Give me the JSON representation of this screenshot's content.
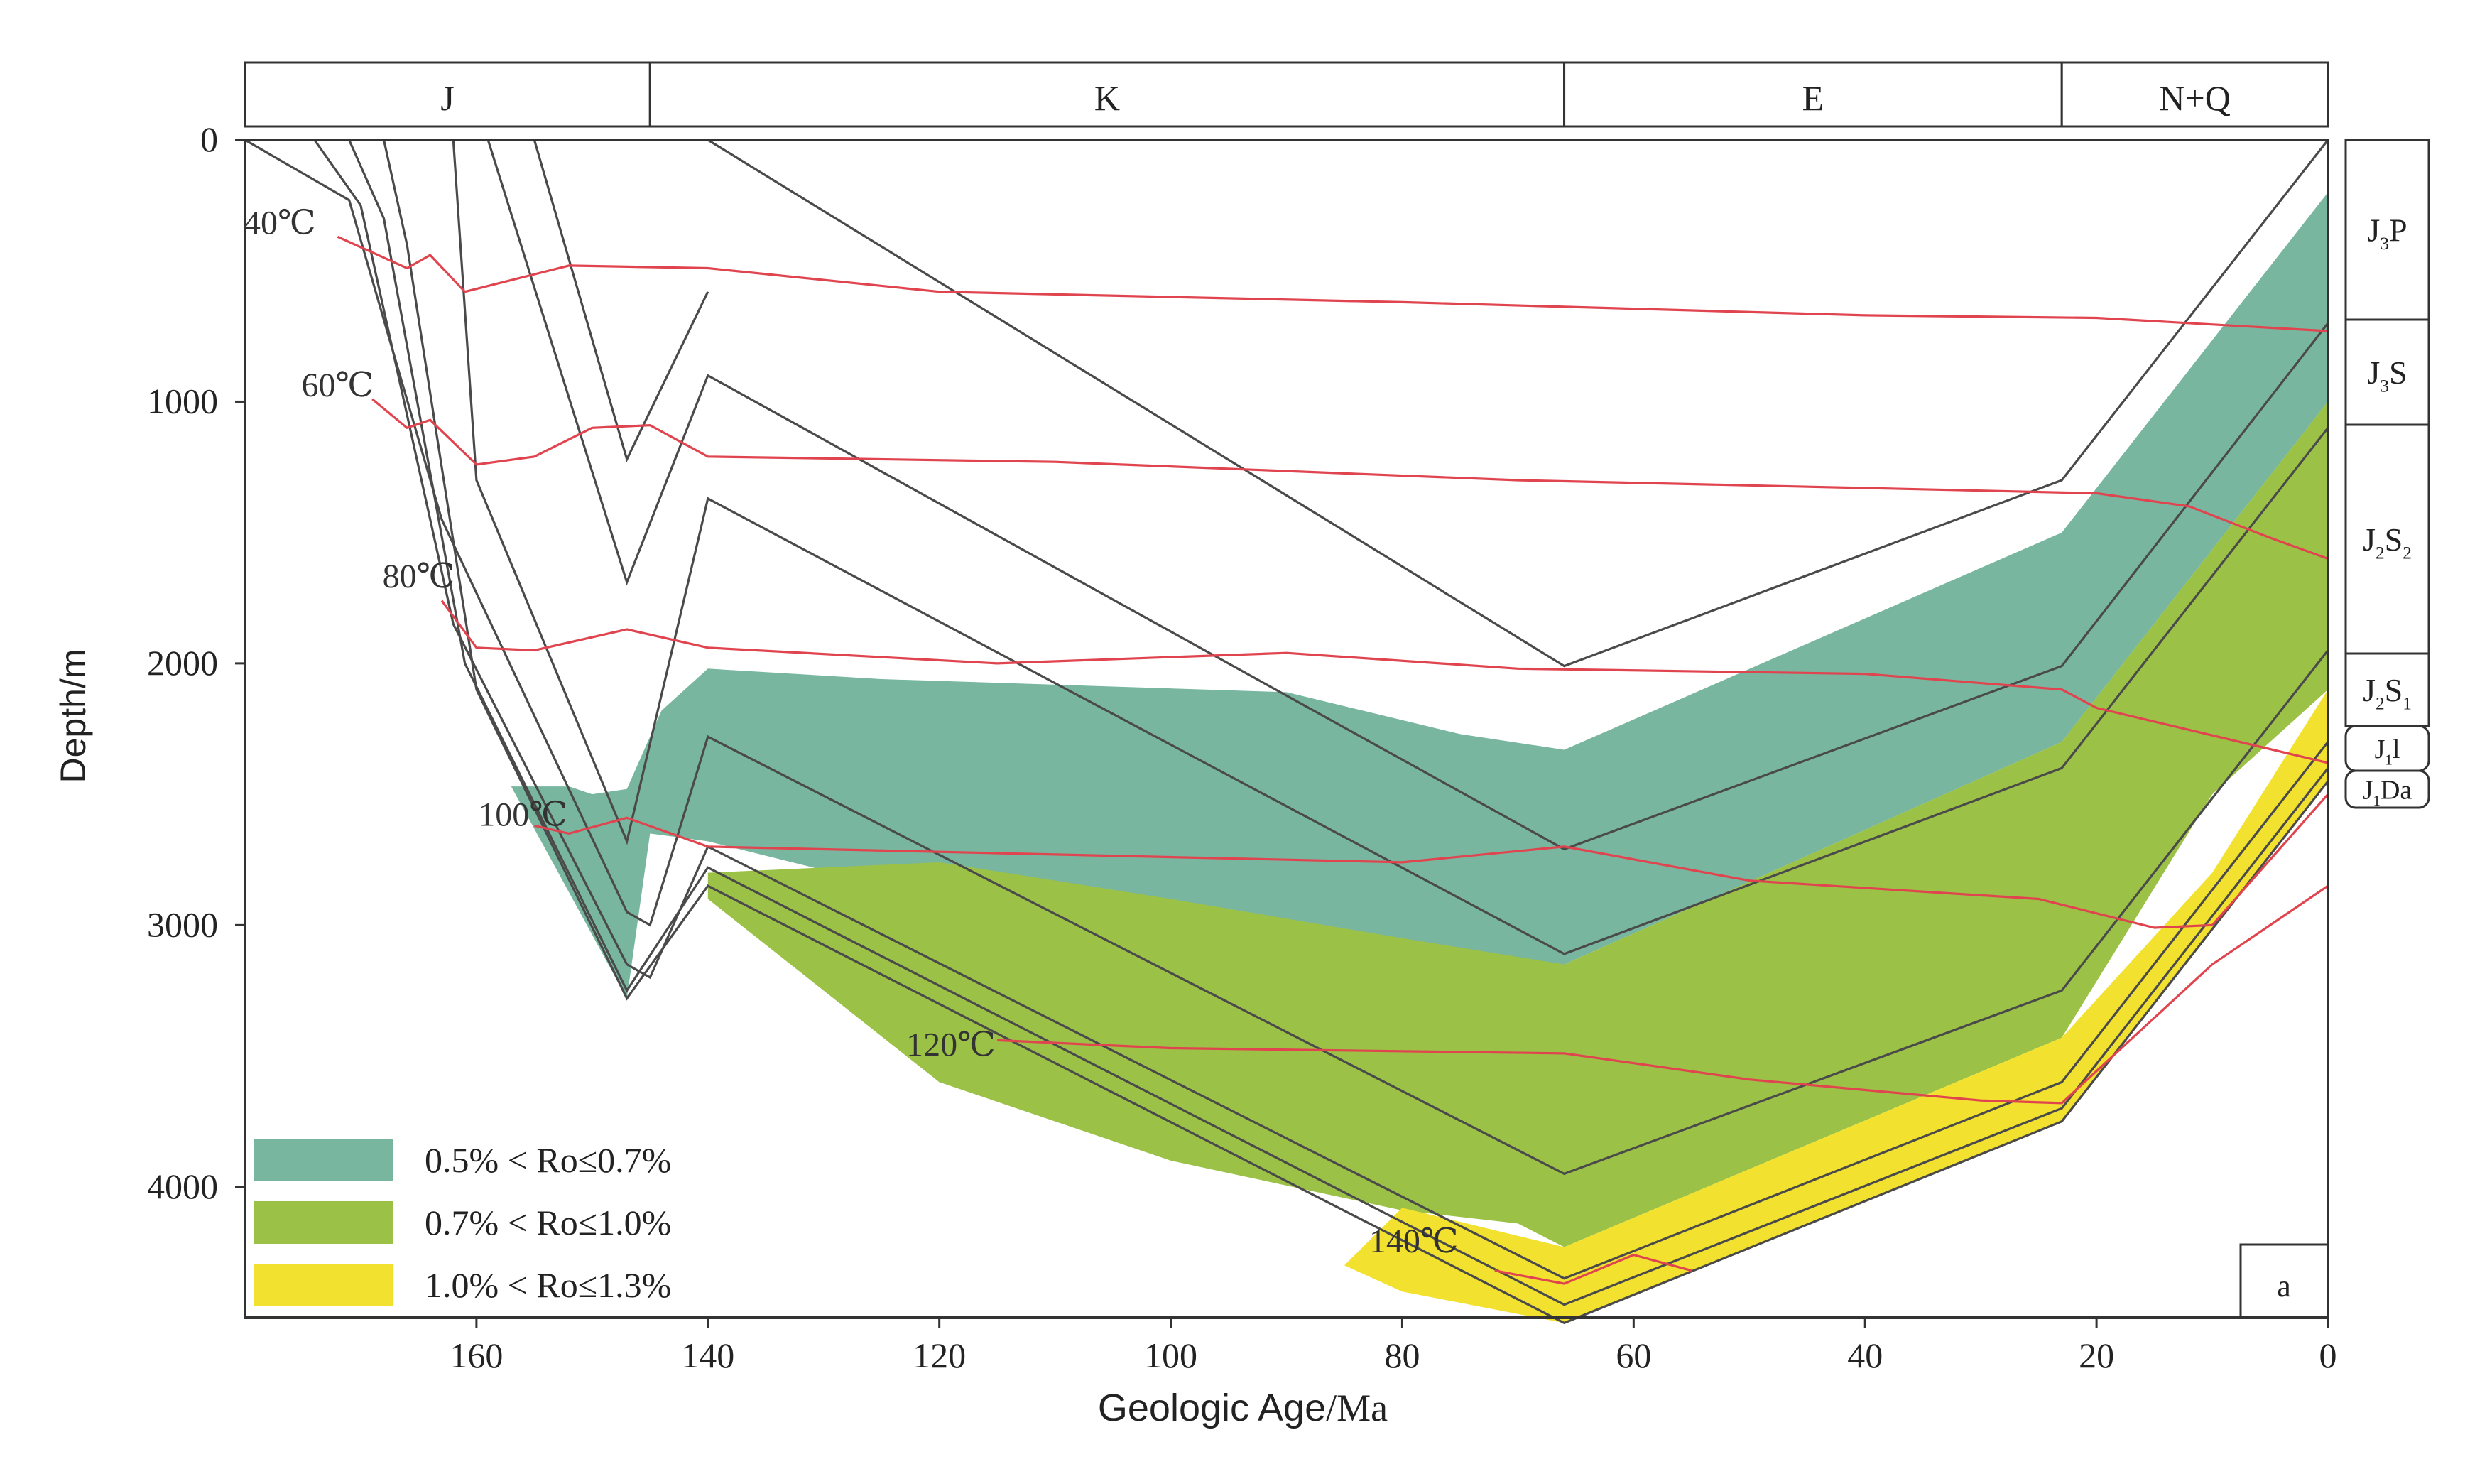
{
  "chart_data": {
    "type": "area",
    "title": "",
    "panel_label": "a",
    "xlabel_main": "Geologic Age",
    "xlabel_unit": "/Ma",
    "ylabel": "Depth/m",
    "xlim": [
      180,
      0
    ],
    "ylim": [
      0,
      4500
    ],
    "x_ticks": [
      160,
      140,
      120,
      100,
      80,
      60,
      40,
      20,
      0
    ],
    "y_ticks": [
      0,
      1000,
      2000,
      3000,
      4000
    ],
    "periods": [
      {
        "label": "J",
        "start": 180,
        "end": 145
      },
      {
        "label": "K",
        "start": 145,
        "end": 66
      },
      {
        "label": "E",
        "start": 66,
        "end": 23
      },
      {
        "label": "N+Q",
        "start": 23,
        "end": 0
      }
    ],
    "formations": [
      {
        "label": "J3P",
        "main": "J",
        "sub": "3",
        "rest": "P",
        "rest_sub": ""
      },
      {
        "label": "J3S",
        "main": "J",
        "sub": "3",
        "rest": "S",
        "rest_sub": ""
      },
      {
        "label": "J2S2",
        "main": "J",
        "sub": "2",
        "rest": "S",
        "rest_sub": "2"
      },
      {
        "label": "J2S1",
        "main": "J",
        "sub": "2",
        "rest": "S",
        "rest_sub": "1"
      },
      {
        "label": "J1l",
        "main": "J",
        "sub": "1",
        "rest": "l",
        "rest_sub": ""
      },
      {
        "label": "J1Da",
        "main": "J",
        "sub": "1",
        "rest": "Da",
        "rest_sub": ""
      }
    ],
    "burial_lines": [
      [
        [
          180,
          0
        ],
        [
          171,
          230
        ],
        [
          163,
          1450
        ],
        [
          147,
          2950
        ],
        [
          145,
          3000
        ],
        [
          140,
          2280
        ],
        [
          66,
          3950
        ],
        [
          23,
          3250
        ],
        [
          0,
          1950
        ]
      ],
      [
        [
          174,
          0
        ],
        [
          170,
          250
        ],
        [
          162,
          1850
        ],
        [
          147,
          3150
        ],
        [
          145,
          3200
        ],
        [
          140,
          2700
        ],
        [
          66,
          4350
        ],
        [
          23,
          3600
        ],
        [
          0,
          2300
        ]
      ],
      [
        [
          171,
          0
        ],
        [
          168,
          300
        ],
        [
          161,
          2000
        ],
        [
          147,
          3250
        ],
        [
          140,
          2780
        ],
        [
          66,
          4450
        ],
        [
          23,
          3700
        ],
        [
          0,
          2400
        ]
      ],
      [
        [
          168,
          0
        ],
        [
          166,
          400
        ],
        [
          160,
          2100
        ],
        [
          147,
          3280
        ],
        [
          140,
          2850
        ],
        [
          66,
          4520
        ],
        [
          23,
          3750
        ],
        [
          0,
          2450
        ]
      ],
      [
        [
          162,
          0
        ],
        [
          160,
          1300
        ],
        [
          147,
          2680
        ],
        [
          140,
          1370
        ],
        [
          66,
          3110
        ],
        [
          23,
          2400
        ],
        [
          0,
          1100
        ]
      ],
      [
        [
          159,
          0
        ],
        [
          147,
          1690
        ],
        [
          140,
          900
        ],
        [
          66,
          2710
        ],
        [
          23,
          2010
        ],
        [
          0,
          700
        ]
      ],
      [
        [
          155,
          0
        ],
        [
          147,
          1220
        ],
        [
          140,
          580
        ]
      ],
      [
        [
          140,
          0
        ],
        [
          66,
          2010
        ],
        [
          23,
          1300
        ],
        [
          0,
          0
        ]
      ]
    ],
    "isotherms": [
      {
        "label": "40℃",
        "label_at": [
          177,
          360
        ],
        "points": [
          [
            172,
            370
          ],
          [
            166,
            490
          ],
          [
            164,
            440
          ],
          [
            161,
            580
          ],
          [
            152,
            480
          ],
          [
            140,
            490
          ],
          [
            120,
            580
          ],
          [
            80,
            620
          ],
          [
            40,
            670
          ],
          [
            20,
            680
          ],
          [
            0,
            730
          ]
        ]
      },
      {
        "label": "60℃",
        "label_at": [
          172,
          980
        ],
        "points": [
          [
            169,
            990
          ],
          [
            166,
            1100
          ],
          [
            164,
            1070
          ],
          [
            160,
            1240
          ],
          [
            155,
            1210
          ],
          [
            150,
            1100
          ],
          [
            145,
            1090
          ],
          [
            140,
            1210
          ],
          [
            110,
            1230
          ],
          [
            70,
            1300
          ],
          [
            40,
            1330
          ],
          [
            20,
            1350
          ],
          [
            12,
            1400
          ],
          [
            5,
            1520
          ],
          [
            0,
            1600
          ]
        ]
      },
      {
        "label": "80℃",
        "label_at": [
          165,
          1710
        ],
        "points": [
          [
            163,
            1760
          ],
          [
            160,
            1940
          ],
          [
            155,
            1950
          ],
          [
            147,
            1870
          ],
          [
            140,
            1940
          ],
          [
            115,
            2000
          ],
          [
            90,
            1960
          ],
          [
            70,
            2020
          ],
          [
            40,
            2040
          ],
          [
            23,
            2100
          ],
          [
            20,
            2170
          ],
          [
            0,
            2380
          ]
        ]
      },
      {
        "label": "100℃",
        "label_at": [
          156,
          2620
        ],
        "points": [
          [
            155,
            2620
          ],
          [
            152,
            2650
          ],
          [
            147,
            2590
          ],
          [
            140,
            2700
          ],
          [
            120,
            2720
          ],
          [
            90,
            2750
          ],
          [
            80,
            2760
          ],
          [
            66,
            2700
          ],
          [
            50,
            2830
          ],
          [
            25,
            2900
          ],
          [
            15,
            3010
          ],
          [
            10,
            3000
          ],
          [
            0,
            2500
          ]
        ]
      },
      {
        "label": "120℃",
        "label_at": [
          119,
          3500
        ],
        "points": [
          [
            115,
            3440
          ],
          [
            100,
            3470
          ],
          [
            66,
            3490
          ],
          [
            50,
            3590
          ],
          [
            30,
            3670
          ],
          [
            23,
            3680
          ],
          [
            10,
            3150
          ],
          [
            0,
            2850
          ]
        ]
      },
      {
        "label": "140℃",
        "label_at": [
          79,
          4250
        ],
        "points": [
          [
            72,
            4320
          ],
          [
            66,
            4370
          ],
          [
            60,
            4260
          ],
          [
            55,
            4320
          ]
        ]
      }
    ],
    "series": [
      {
        "name": "0.5% < Ro≤0.7%",
        "color": "#78b6a0",
        "polygon": [
          [
            157,
            2470
          ],
          [
            152,
            2470
          ],
          [
            150,
            2500
          ],
          [
            147,
            2480
          ],
          [
            144,
            2180
          ],
          [
            140,
            2020
          ],
          [
            125,
            2060
          ],
          [
            90,
            2110
          ],
          [
            75,
            2270
          ],
          [
            66,
            2330
          ],
          [
            23,
            1500
          ],
          [
            0,
            200
          ],
          [
            0,
            1000
          ],
          [
            23,
            2300
          ],
          [
            66,
            3150
          ],
          [
            80,
            3100
          ],
          [
            100,
            3050
          ],
          [
            120,
            2900
          ],
          [
            140,
            2680
          ],
          [
            145,
            2650
          ],
          [
            147,
            3280
          ]
        ]
      },
      {
        "name": "0.7% < Ro≤1.0%",
        "color": "#9bc146",
        "polygon": [
          [
            140,
            2800
          ],
          [
            130,
            2780
          ],
          [
            120,
            2760
          ],
          [
            100,
            2900
          ],
          [
            80,
            3050
          ],
          [
            66,
            3150
          ],
          [
            23,
            2300
          ],
          [
            0,
            1000
          ],
          [
            0,
            2100
          ],
          [
            10,
            2500
          ],
          [
            23,
            3430
          ],
          [
            66,
            4230
          ],
          [
            70,
            4140
          ],
          [
            80,
            4090
          ],
          [
            100,
            3900
          ],
          [
            120,
            3600
          ],
          [
            140,
            2900
          ]
        ]
      },
      {
        "name": "1.0% < Ro≤1.3%",
        "color": "#f2e12e",
        "polygon": [
          [
            80,
            4080
          ],
          [
            66,
            4230
          ],
          [
            23,
            3430
          ],
          [
            10,
            2800
          ],
          [
            0,
            2100
          ],
          [
            0,
            2450
          ],
          [
            23,
            3750
          ],
          [
            66,
            4520
          ],
          [
            80,
            4400
          ],
          [
            85,
            4300
          ]
        ]
      }
    ],
    "legend_position": "bottom-left"
  }
}
